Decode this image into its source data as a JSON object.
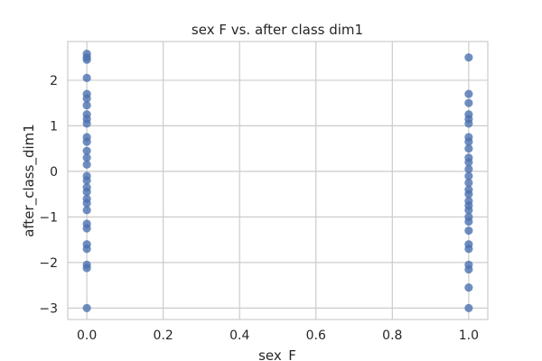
{
  "chart_data": {
    "type": "scatter",
    "title": "sex F vs. after class dim1",
    "xlabel": "sex_F",
    "ylabel": "after_class_dim1",
    "xlim": [
      -0.05,
      1.05
    ],
    "ylim": [
      -3.25,
      2.85
    ],
    "xticks": [
      0.0,
      0.2,
      0.4,
      0.6,
      0.8,
      1.0
    ],
    "xtick_labels": [
      "0.0",
      "0.2",
      "0.4",
      "0.6",
      "0.8",
      "1.0"
    ],
    "yticks": [
      -3,
      -2,
      -1,
      0,
      1,
      2
    ],
    "ytick_labels": [
      "−3",
      "−2",
      "−1",
      "0",
      "1",
      "2"
    ],
    "grid": true,
    "marker_color": "#4c72b0",
    "points": [
      {
        "x": 0,
        "y": 2.58
      },
      {
        "x": 0,
        "y": 2.5
      },
      {
        "x": 0,
        "y": 2.45
      },
      {
        "x": 0,
        "y": 2.05
      },
      {
        "x": 0,
        "y": 1.7
      },
      {
        "x": 0,
        "y": 1.6
      },
      {
        "x": 0,
        "y": 1.45
      },
      {
        "x": 0,
        "y": 1.25
      },
      {
        "x": 0,
        "y": 1.15
      },
      {
        "x": 0,
        "y": 1.05
      },
      {
        "x": 0,
        "y": 0.75
      },
      {
        "x": 0,
        "y": 0.65
      },
      {
        "x": 0,
        "y": 0.45
      },
      {
        "x": 0,
        "y": 0.3
      },
      {
        "x": 0,
        "y": 0.15
      },
      {
        "x": 0,
        "y": -0.1
      },
      {
        "x": 0,
        "y": -0.2
      },
      {
        "x": 0,
        "y": -0.35
      },
      {
        "x": 0,
        "y": -0.45
      },
      {
        "x": 0,
        "y": -0.6
      },
      {
        "x": 0,
        "y": -0.7
      },
      {
        "x": 0,
        "y": -0.85
      },
      {
        "x": 0,
        "y": -1.15
      },
      {
        "x": 0,
        "y": -1.25
      },
      {
        "x": 0,
        "y": -1.6
      },
      {
        "x": 0,
        "y": -1.7
      },
      {
        "x": 0,
        "y": -2.05
      },
      {
        "x": 0,
        "y": -2.12
      },
      {
        "x": 0,
        "y": -3.0
      },
      {
        "x": 1,
        "y": 2.5
      },
      {
        "x": 1,
        "y": 1.7
      },
      {
        "x": 1,
        "y": 1.5
      },
      {
        "x": 1,
        "y": 1.25
      },
      {
        "x": 1,
        "y": 1.15
      },
      {
        "x": 1,
        "y": 1.05
      },
      {
        "x": 1,
        "y": 0.75
      },
      {
        "x": 1,
        "y": 0.65
      },
      {
        "x": 1,
        "y": 0.5
      },
      {
        "x": 1,
        "y": 0.3
      },
      {
        "x": 1,
        "y": 0.2
      },
      {
        "x": 1,
        "y": 0.05
      },
      {
        "x": 1,
        "y": -0.1
      },
      {
        "x": 1,
        "y": -0.25
      },
      {
        "x": 1,
        "y": -0.4
      },
      {
        "x": 1,
        "y": -0.5
      },
      {
        "x": 1,
        "y": -0.65
      },
      {
        "x": 1,
        "y": -0.75
      },
      {
        "x": 1,
        "y": -0.85
      },
      {
        "x": 1,
        "y": -1.0
      },
      {
        "x": 1,
        "y": -1.1
      },
      {
        "x": 1,
        "y": -1.3
      },
      {
        "x": 1,
        "y": -1.6
      },
      {
        "x": 1,
        "y": -1.7
      },
      {
        "x": 1,
        "y": -2.05
      },
      {
        "x": 1,
        "y": -2.15
      },
      {
        "x": 1,
        "y": -2.55
      },
      {
        "x": 1,
        "y": -3.0
      }
    ]
  }
}
